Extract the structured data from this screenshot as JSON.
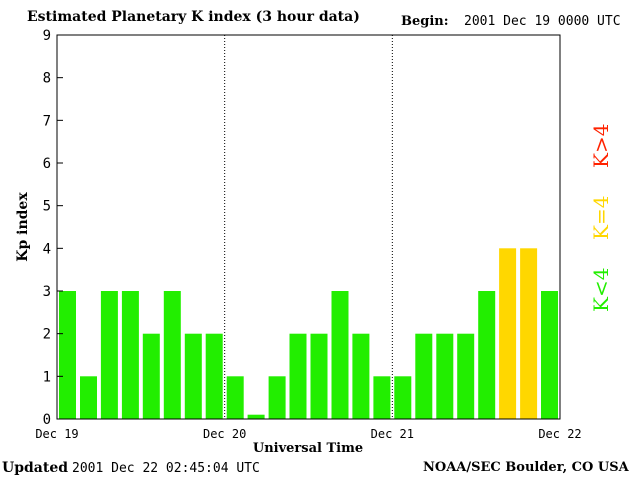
{
  "header": {
    "title": "Estimated Planetary K index (3 hour data)",
    "begin_label": "Begin:",
    "begin_value": "2001 Dec 19 0000 UTC"
  },
  "footer": {
    "updated_label": "Updated",
    "updated_value": "2001 Dec 22 02:45:04 UTC",
    "source": "NOAA/SEC Boulder, CO USA"
  },
  "legend": {
    "above": "K>4",
    "equal": "K=4",
    "below": "K<4"
  },
  "colors": {
    "below": "#22ee00",
    "equal": "#ffd700",
    "above": "#ff2200"
  },
  "chart_data": {
    "type": "bar",
    "ylabel": "Kp index",
    "xlabel": "Universal Time",
    "ylim": [
      0,
      9
    ],
    "yticks": [
      "0",
      "1",
      "2",
      "3",
      "4",
      "5",
      "6",
      "7",
      "8",
      "9"
    ],
    "day_labels": [
      "Dec 19",
      "Dec 20",
      "Dec 21",
      "Dec 22"
    ],
    "bars_per_day": 8,
    "values": [
      3,
      1,
      3,
      3,
      2,
      3,
      2,
      2,
      1,
      0.1,
      1,
      2,
      2,
      3,
      2,
      1,
      1,
      2,
      2,
      2,
      3,
      4,
      4,
      3
    ]
  }
}
